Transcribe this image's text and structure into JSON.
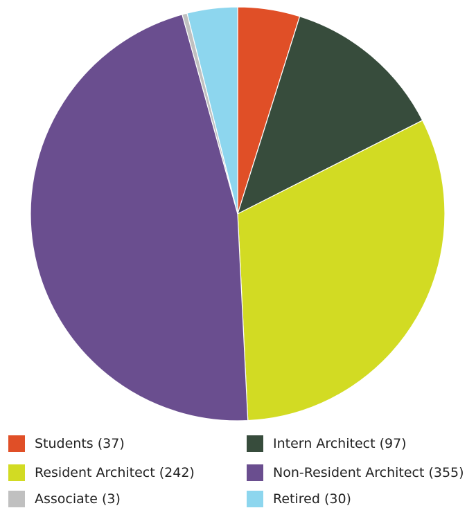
{
  "chart_data": {
    "type": "pie",
    "title": "",
    "categories": [
      "Students",
      "Intern Architect",
      "Resident Architect",
      "Non-Resident Architect",
      "Associate",
      "Retired"
    ],
    "values": [
      37,
      97,
      242,
      355,
      3,
      30
    ],
    "colors": [
      "#e04f27",
      "#374c3c",
      "#d2db23",
      "#6a4e8f",
      "#c0c0c0",
      "#8dd6ee"
    ],
    "legend": {
      "position": "bottom",
      "items": [
        {
          "label": "Students (37)",
          "color": "#e04f27"
        },
        {
          "label": "Intern Architect (97)",
          "color": "#374c3c"
        },
        {
          "label": "Resident Architect (242)",
          "color": "#d2db23"
        },
        {
          "label": "Non-Resident Architect (355)",
          "color": "#6a4e8f"
        },
        {
          "label": "Associate (3)",
          "color": "#c0c0c0"
        },
        {
          "label": "Retired (30)",
          "color": "#8dd6ee"
        }
      ]
    }
  }
}
